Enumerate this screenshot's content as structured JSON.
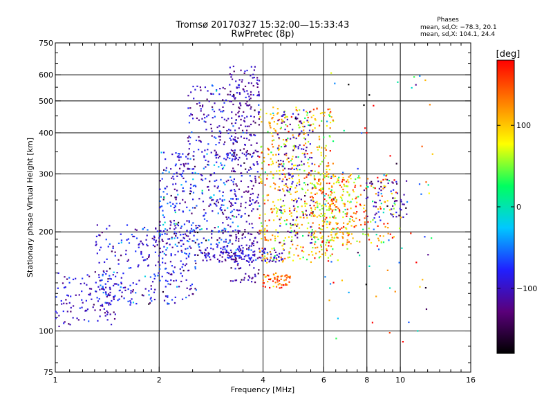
{
  "chart_data": {
    "type": "scatter",
    "title": "Tromsø 20170327 15:32:00—15:33:43",
    "subtitle": "RwPretec (8p)",
    "xlabel": "Frequency [MHz]",
    "ylabel": "Stationary phase Virtual Height [km]",
    "x_scale": "log",
    "y_scale": "log",
    "xlim": [
      1,
      16
    ],
    "ylim": [
      75,
      750
    ],
    "x_ticks": [
      1,
      2,
      4,
      6,
      8,
      10,
      16
    ],
    "y_ticks": [
      75,
      100,
      200,
      300,
      400,
      500,
      600,
      750
    ],
    "grid": true,
    "phase_block": {
      "heading": "Phases",
      "line_o": "mean, sd,O: −78.3, 20.1",
      "line_x": "mean, sd,X: 104.1, 24.4"
    },
    "colorbar": {
      "label": "[deg]",
      "tick_labels": [
        "100",
        "0",
        "−100"
      ],
      "tick_values": [
        100,
        0,
        -100
      ],
      "range": [
        -180,
        180
      ],
      "colormap": [
        "#000000",
        "#5a007a",
        "#2020ff",
        "#00c8ff",
        "#00ff60",
        "#ffff00",
        "#ff8000",
        "#ff0000"
      ]
    },
    "clusters": [
      {
        "name": "o-low-ramp",
        "xmin": 1.0,
        "xmax": 1.5,
        "ymin": 103,
        "ymax": 150,
        "n": 110,
        "phase": -95,
        "spread": 20
      },
      {
        "name": "o-mid",
        "xmin": 1.3,
        "xmax": 2.6,
        "ymin": 120,
        "ymax": 210,
        "n": 320,
        "phase": -90,
        "spread": 30
      },
      {
        "name": "o-upper",
        "xmin": 2.0,
        "xmax": 3.4,
        "ymin": 170,
        "ymax": 350,
        "n": 380,
        "phase": -85,
        "spread": 35
      },
      {
        "name": "o-high",
        "xmin": 2.4,
        "xmax": 3.6,
        "ymin": 330,
        "ymax": 560,
        "n": 160,
        "phase": -100,
        "spread": 25
      },
      {
        "name": "o-trace-3.5",
        "xmin": 3.2,
        "xmax": 3.9,
        "ymin": 140,
        "ymax": 640,
        "n": 320,
        "phase": -110,
        "spread": 20
      },
      {
        "name": "o-170-band",
        "xmin": 2.6,
        "xmax": 4.6,
        "ymin": 162,
        "ymax": 178,
        "n": 140,
        "phase": -100,
        "spread": 20
      },
      {
        "name": "x-main",
        "xmin": 3.9,
        "xmax": 6.4,
        "ymin": 160,
        "ymax": 480,
        "n": 520,
        "phase": 100,
        "spread": 45
      },
      {
        "name": "x-mid",
        "xmin": 5.5,
        "xmax": 7.5,
        "ymin": 180,
        "ymax": 300,
        "n": 180,
        "phase": 110,
        "spread": 40
      },
      {
        "name": "o-around-5",
        "xmin": 4.4,
        "xmax": 5.6,
        "ymin": 180,
        "ymax": 470,
        "n": 150,
        "phase": -110,
        "spread": 20
      },
      {
        "name": "x-sparse",
        "xmin": 6.0,
        "xmax": 9.8,
        "ymin": 185,
        "ymax": 300,
        "n": 140,
        "phase": 90,
        "spread": 60
      },
      {
        "name": "o-sparse-far",
        "xmin": 7.8,
        "xmax": 10.5,
        "ymin": 220,
        "ymax": 290,
        "n": 60,
        "phase": -110,
        "spread": 20
      },
      {
        "name": "x-faint",
        "xmin": 4.0,
        "xmax": 4.8,
        "ymin": 135,
        "ymax": 150,
        "n": 60,
        "phase": 140,
        "spread": 30
      },
      {
        "name": "scatter-noise",
        "xmin": 6.0,
        "xmax": 12.5,
        "ymin": 90,
        "ymax": 620,
        "n": 90,
        "phase": 40,
        "spread": 150
      }
    ]
  }
}
